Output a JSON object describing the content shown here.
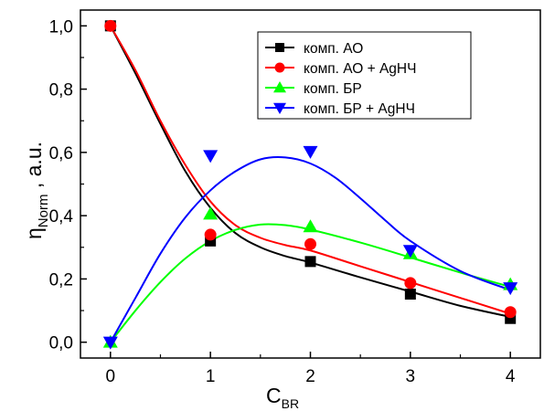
{
  "chart_data": {
    "type": "line",
    "xlabel": "C",
    "xlabel_sub": "BR",
    "ylabel": "η",
    "ylabel_sub": "Norm",
    "ylabel_suffix": " , a.u.",
    "xlim": [
      -0.3,
      4.3
    ],
    "ylim": [
      -0.05,
      1.05
    ],
    "x_ticks": [
      0,
      1,
      2,
      3,
      4
    ],
    "x_tick_labels": [
      "0",
      "1",
      "2",
      "3",
      "4"
    ],
    "y_ticks": [
      0.0,
      0.2,
      0.4,
      0.6,
      0.8,
      1.0
    ],
    "y_tick_labels": [
      "0,0",
      "0,2",
      "0,4",
      "0,6",
      "0,8",
      "1,0"
    ],
    "grid": false,
    "legend_position": "top-right",
    "series": [
      {
        "name": "комп. АО",
        "color": "#000000",
        "marker": "square",
        "x": [
          0,
          1,
          2,
          3,
          4
        ],
        "y": [
          1.0,
          0.32,
          0.255,
          0.152,
          0.075
        ],
        "fit": [
          [
            0,
            1.0
          ],
          [
            0.25,
            0.85
          ],
          [
            0.5,
            0.69
          ],
          [
            0.75,
            0.54
          ],
          [
            1.0,
            0.425
          ],
          [
            1.25,
            0.345
          ],
          [
            1.5,
            0.3
          ],
          [
            1.75,
            0.272
          ],
          [
            2.0,
            0.252
          ],
          [
            2.5,
            0.205
          ],
          [
            3.0,
            0.16
          ],
          [
            3.5,
            0.115
          ],
          [
            4.0,
            0.08
          ]
        ]
      },
      {
        "name": "комп. АО + AgНЧ",
        "color": "#ff0000",
        "marker": "circle",
        "x": [
          0,
          1,
          2,
          3,
          4
        ],
        "y": [
          1.0,
          0.34,
          0.31,
          0.187,
          0.095
        ],
        "fit": [
          [
            0,
            1.0
          ],
          [
            0.25,
            0.86
          ],
          [
            0.5,
            0.7
          ],
          [
            0.75,
            0.56
          ],
          [
            1.0,
            0.445
          ],
          [
            1.25,
            0.37
          ],
          [
            1.5,
            0.33
          ],
          [
            1.75,
            0.307
          ],
          [
            2.0,
            0.29
          ],
          [
            2.5,
            0.24
          ],
          [
            3.0,
            0.19
          ],
          [
            3.5,
            0.14
          ],
          [
            4.0,
            0.09
          ]
        ]
      },
      {
        "name": "комп. БР",
        "color": "#00ff00",
        "marker": "triangle-up",
        "x": [
          0,
          1,
          2,
          3,
          4
        ],
        "y": [
          0.0,
          0.405,
          0.365,
          0.28,
          0.182
        ],
        "fit": [
          [
            0,
            0.0
          ],
          [
            0.25,
            0.1
          ],
          [
            0.5,
            0.19
          ],
          [
            0.75,
            0.265
          ],
          [
            1.0,
            0.32
          ],
          [
            1.25,
            0.355
          ],
          [
            1.5,
            0.372
          ],
          [
            1.75,
            0.37
          ],
          [
            2.0,
            0.356
          ],
          [
            2.5,
            0.315
          ],
          [
            3.0,
            0.268
          ],
          [
            3.5,
            0.22
          ],
          [
            4.0,
            0.175
          ]
        ]
      },
      {
        "name": "комп. БР + AgНЧ",
        "color": "#0000ff",
        "marker": "triangle-down",
        "x": [
          0,
          1,
          2,
          3,
          4
        ],
        "y": [
          0.0,
          0.59,
          0.603,
          0.29,
          0.172
        ],
        "fit": [
          [
            0,
            0.0
          ],
          [
            0.25,
            0.14
          ],
          [
            0.5,
            0.28
          ],
          [
            0.75,
            0.395
          ],
          [
            1.0,
            0.48
          ],
          [
            1.25,
            0.54
          ],
          [
            1.5,
            0.578
          ],
          [
            1.75,
            0.584
          ],
          [
            2.0,
            0.565
          ],
          [
            2.25,
            0.52
          ],
          [
            2.5,
            0.455
          ],
          [
            2.75,
            0.385
          ],
          [
            3.0,
            0.32
          ],
          [
            3.5,
            0.225
          ],
          [
            4.0,
            0.165
          ]
        ]
      }
    ]
  }
}
